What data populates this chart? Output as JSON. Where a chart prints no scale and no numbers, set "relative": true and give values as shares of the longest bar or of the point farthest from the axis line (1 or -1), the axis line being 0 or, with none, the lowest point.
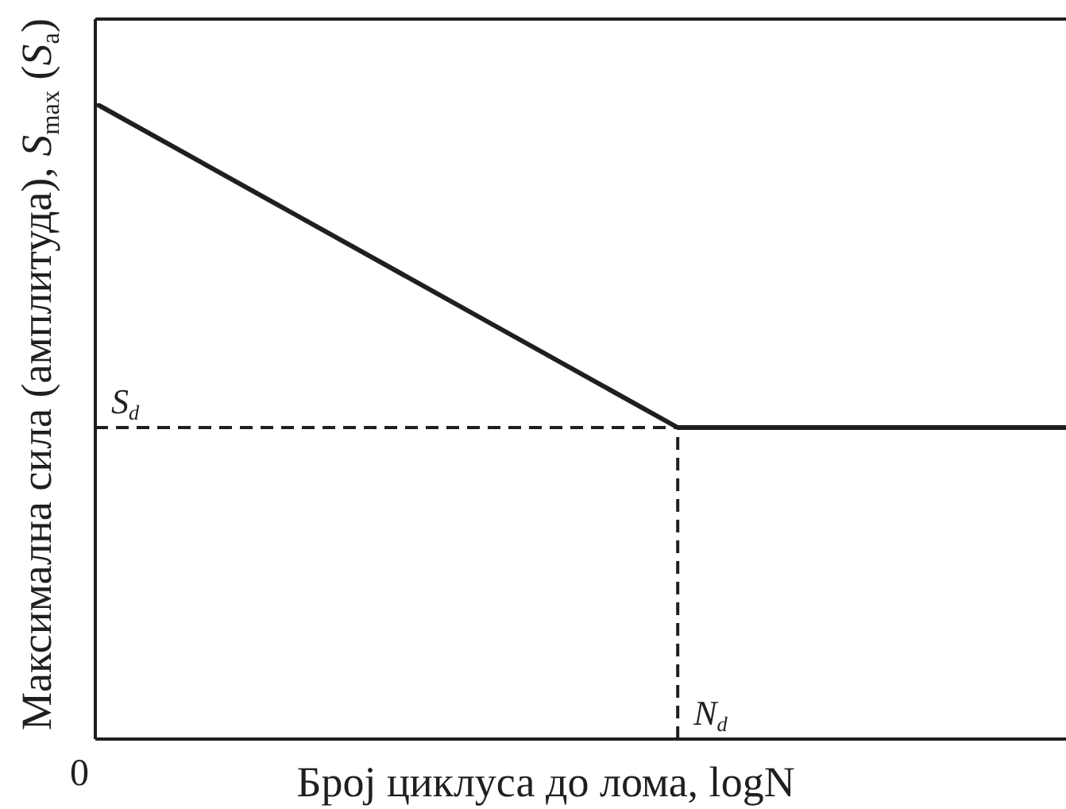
{
  "chart_data": {
    "type": "line",
    "xlabel": "Број циклуса до лома, logN",
    "ylabel": "Максимална сила (амплитуда), S$_{max}$ (S$_{a}$)",
    "relative": true,
    "categories": [
      null,
      null,
      null,
      null,
      null,
      null
    ],
    "series": [
      {
        "color": "#1f1f1f",
        "values": [
          1,
          0.83,
          0.66,
          0.49,
          0.49,
          0.49
        ]
      }
    ],
    "ref_lines": [
      {
        "axis": "y",
        "value": 0.49,
        "label": "S$_{d}$",
        "line_style": "dashed"
      }
    ],
    "annotations": [
      "0",
      "N$_{d}$"
    ],
    "marker": "none",
    "line_style": "solid"
  }
}
